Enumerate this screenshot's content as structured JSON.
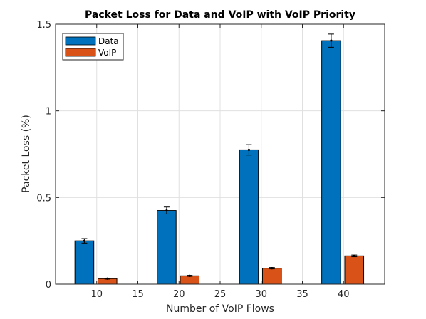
{
  "chart_data": {
    "type": "bar",
    "title": "Packet Loss for Data and VoIP with VoIP Priority",
    "xlabel": "Number of VoIP Flows",
    "ylabel": "Packet Loss (%)",
    "xlim": [
      5,
      45
    ],
    "ylim": [
      0,
      1.5
    ],
    "xticks": [
      10,
      15,
      20,
      25,
      30,
      35,
      40
    ],
    "yticks": [
      0,
      0.5,
      1,
      1.5
    ],
    "xtick_labels": [
      "10",
      "15",
      "20",
      "25",
      "30",
      "35",
      "40"
    ],
    "ytick_labels": [
      "0",
      "0.5",
      "1",
      "1.5"
    ],
    "grid": true,
    "legend_position": "top-left",
    "categories": [
      10,
      20,
      30,
      40
    ],
    "series": [
      {
        "name": "Data",
        "color": "#0072BD",
        "x": [
          8.5,
          18.5,
          28.5,
          38.5
        ],
        "values": [
          0.25,
          0.425,
          0.775,
          1.405
        ],
        "error": [
          0.013,
          0.02,
          0.03,
          0.038
        ]
      },
      {
        "name": "VoIP",
        "color": "#D95319",
        "x": [
          11.3,
          21.3,
          31.3,
          41.3
        ],
        "values": [
          0.032,
          0.048,
          0.092,
          0.163
        ],
        "error": [
          0.003,
          0.003,
          0.004,
          0.005
        ]
      }
    ]
  }
}
